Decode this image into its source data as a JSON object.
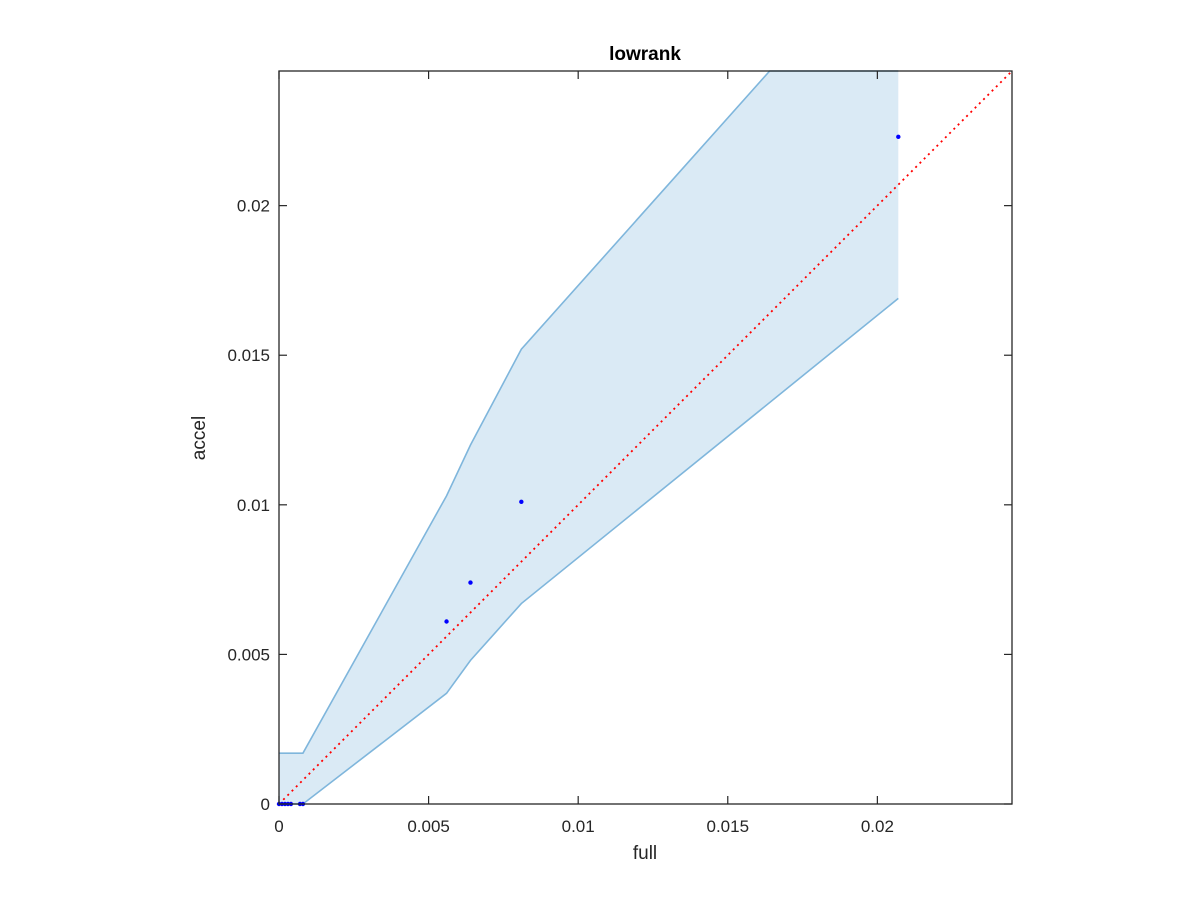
{
  "chart_data": {
    "type": "scatter",
    "title": "lowrank",
    "xlabel": "full",
    "ylabel": "accel",
    "xlim": [
      0,
      0.0245
    ],
    "ylim": [
      0,
      0.0245
    ],
    "xticks": [
      0,
      0.005,
      0.01,
      0.015,
      0.02
    ],
    "xtick_labels": [
      "0",
      "0.005",
      "0.01",
      "0.015",
      "0.02"
    ],
    "yticks": [
      0,
      0.005,
      0.01,
      0.015,
      0.02
    ],
    "ytick_labels": [
      "0",
      "0.005",
      "0.01",
      "0.015",
      "0.02"
    ],
    "grid": false,
    "points": {
      "color": "#0000ff",
      "x": [
        0,
        0.0001,
        0.0002,
        0.0003,
        0.0004,
        0.0007,
        0.0008,
        0.0056,
        0.0064,
        0.0081,
        0.0207
      ],
      "y": [
        0,
        0,
        0,
        0,
        0,
        0,
        0,
        0.0061,
        0.0074,
        0.0101,
        0.0223
      ]
    },
    "band": {
      "color": "#7fb6dc",
      "fill_color": "#daeaf5",
      "upper": {
        "x": [
          0,
          0.0008,
          0.0056,
          0.0064,
          0.0081,
          0.0164,
          0.0207
        ],
        "y": [
          0.0017,
          0.0017,
          0.0103,
          0.012,
          0.0152,
          0.0245,
          0.0245
        ]
      },
      "lower": {
        "x": [
          0,
          0.0008,
          0.0056,
          0.0064,
          0.0081,
          0.0207
        ],
        "y": [
          0,
          0,
          0.0037,
          0.0048,
          0.0067,
          0.0169
        ]
      }
    },
    "reference_line": {
      "style": "dotted",
      "color": "#ff0000",
      "x": [
        0,
        0.0245
      ],
      "y": [
        0,
        0.0245
      ]
    }
  }
}
